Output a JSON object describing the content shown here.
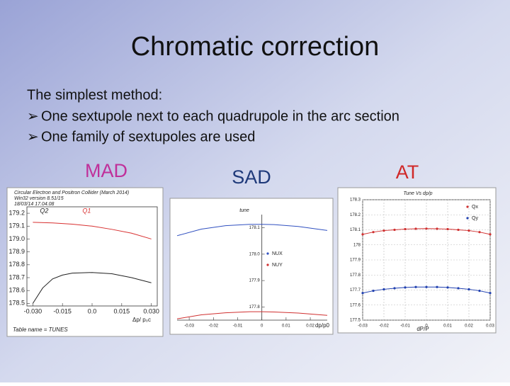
{
  "title": "Chromatic correction",
  "intro": "The simplest method:",
  "bullets": [
    "One sextupole next to each quadrupole in the arc section",
    "One family of sextupoles are used"
  ],
  "panels": [
    {
      "label": "MAD",
      "color": "#c0309a",
      "header": [
        "Circular Electron and Positron Collider (March 2014)",
        "Win32 version 8.51/15",
        "18/03/14 17.04.08"
      ],
      "footer": "Table name = TUNES",
      "xlabel": "Δp/ p₀c",
      "grid": false,
      "markers": false,
      "legend": false,
      "xlim": [
        -0.033,
        0.033
      ],
      "ylim": [
        178.48,
        179.25
      ],
      "xticks": [
        {
          "value": -0.03,
          "label": "-0.030"
        },
        {
          "value": -0.015,
          "label": "-0.015"
        },
        {
          "value": 0,
          "label": "0.0"
        },
        {
          "value": 0.015,
          "label": "0.015"
        },
        {
          "value": 0.03,
          "label": "0.030"
        }
      ],
      "yticks": [
        178.5,
        178.6,
        178.7,
        178.8,
        178.9,
        {
          "value": 179,
          "label": "179.0"
        },
        179.1,
        179.2
      ],
      "series": [
        {
          "name": "Q1",
          "color": "#d83030",
          "x": [
            -0.03,
            -0.02,
            -0.01,
            0,
            0.01,
            0.02,
            0.03
          ],
          "values": [
            179.13,
            179.125,
            179.115,
            179.1,
            179.075,
            179.045,
            179.0
          ]
        },
        {
          "name": "Q2",
          "color": "#202020",
          "x": [
            -0.03,
            -0.025,
            -0.02,
            -0.015,
            -0.01,
            0,
            0.01,
            0.02,
            0.03
          ],
          "values": [
            178.5,
            178.62,
            178.69,
            178.72,
            178.735,
            178.74,
            178.73,
            178.7,
            178.66
          ]
        }
      ]
    },
    {
      "label": "SAD",
      "color": "#1f3a7a",
      "header": [
        "tune"
      ],
      "xlabel": "dp/p0",
      "grid": false,
      "markers": false,
      "legend": true,
      "xlim": [
        -0.035,
        0.027
      ],
      "ylim": [
        177.75,
        178.15
      ],
      "xticks": [
        -0.03,
        -0.02,
        -0.01,
        0,
        0.01,
        0.02
      ],
      "yticks": [
        177.8,
        177.9,
        {
          "value": 178,
          "label": "178.0"
        },
        178.1
      ],
      "series": [
        {
          "name": "NUX",
          "color": "#3050c0",
          "x": [
            -0.035,
            -0.025,
            -0.015,
            -0.005,
            0,
            0.005,
            0.015,
            0.027
          ],
          "values": [
            178.07,
            178.095,
            178.108,
            178.113,
            178.113,
            178.112,
            178.105,
            178.09
          ]
        },
        {
          "name": "NUY",
          "color": "#d03030",
          "x": [
            -0.035,
            -0.025,
            -0.015,
            -0.005,
            0,
            0.005,
            0.015,
            0.027
          ],
          "values": [
            177.755,
            177.77,
            177.778,
            177.782,
            177.782,
            177.781,
            177.777,
            177.768
          ]
        }
      ]
    },
    {
      "label": "AT",
      "color": "#d02828",
      "header": [
        "Tune Vs dp/p"
      ],
      "xlabel": "dP/P",
      "grid": true,
      "markers": true,
      "legend": true,
      "xlim": [
        -0.03,
        0.03
      ],
      "ylim": [
        177.5,
        178.3
      ],
      "xticks": [
        -0.03,
        -0.02,
        -0.01,
        0,
        0.01,
        0.02,
        0.03
      ],
      "yticks": [
        177.5,
        177.6,
        177.7,
        177.8,
        177.9,
        178,
        178.1,
        178.2,
        178.3
      ],
      "series": [
        {
          "name": "Qx",
          "color": "#d03030",
          "x": [
            -0.03,
            -0.025,
            -0.02,
            -0.015,
            -0.01,
            -0.005,
            0,
            0.005,
            0.01,
            0.015,
            0.02,
            0.025,
            0.03
          ],
          "values": [
            178.07,
            178.085,
            178.095,
            178.1,
            178.105,
            178.107,
            178.108,
            178.107,
            178.105,
            178.1,
            178.095,
            178.085,
            178.07
          ]
        },
        {
          "name": "Qy",
          "color": "#2040b0",
          "x": [
            -0.03,
            -0.025,
            -0.02,
            -0.015,
            -0.01,
            -0.005,
            0,
            0.005,
            0.01,
            0.015,
            0.02,
            0.025,
            0.03
          ],
          "values": [
            177.68,
            177.695,
            177.705,
            177.712,
            177.717,
            177.72,
            177.72,
            177.72,
            177.717,
            177.712,
            177.705,
            177.695,
            177.68
          ]
        }
      ]
    }
  ]
}
